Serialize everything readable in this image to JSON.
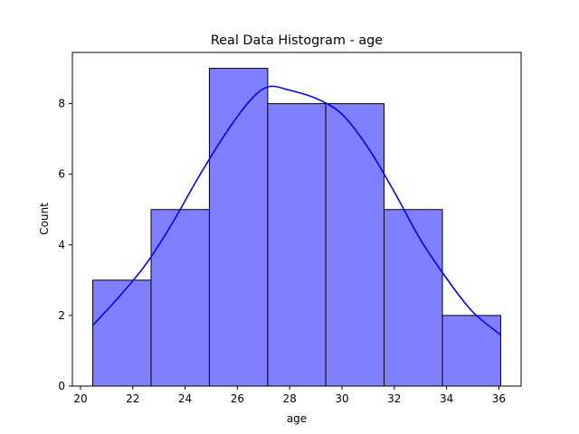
{
  "chart_data": {
    "type": "bar",
    "title": "Real Data Histogram - age",
    "xlabel": "age",
    "ylabel": "Count",
    "bins": [
      {
        "start": 20.47,
        "end": 22.7,
        "count": 3
      },
      {
        "start": 22.7,
        "end": 24.93,
        "count": 5
      },
      {
        "start": 24.93,
        "end": 27.16,
        "count": 9
      },
      {
        "start": 27.16,
        "end": 29.38,
        "count": 8
      },
      {
        "start": 29.38,
        "end": 31.61,
        "count": 8
      },
      {
        "start": 31.61,
        "end": 33.84,
        "count": 5
      },
      {
        "start": 33.84,
        "end": 36.07,
        "count": 2
      }
    ],
    "kde": {
      "x": [
        20.47,
        21.5,
        22.5,
        23.5,
        24.5,
        25.5,
        26.5,
        27.2,
        28.0,
        29.0,
        30.0,
        31.0,
        32.0,
        33.0,
        34.0,
        35.0,
        36.07
      ],
      "y": [
        1.72,
        2.55,
        3.45,
        4.6,
        5.9,
        7.1,
        8.1,
        8.48,
        8.38,
        8.15,
        7.7,
        6.75,
        5.5,
        4.15,
        3.05,
        2.1,
        1.45
      ]
    },
    "xticks": [
      20,
      22,
      24,
      26,
      28,
      30,
      32,
      34,
      36
    ],
    "yticks": [
      0,
      2,
      4,
      6,
      8
    ],
    "xlim": [
      19.69,
      36.85
    ],
    "ylim": [
      0,
      9.45
    ],
    "grid": false,
    "colors": {
      "bar_fill": "#8080ff",
      "bar_edge": "#000000",
      "kde_line": "#0000ff"
    }
  }
}
